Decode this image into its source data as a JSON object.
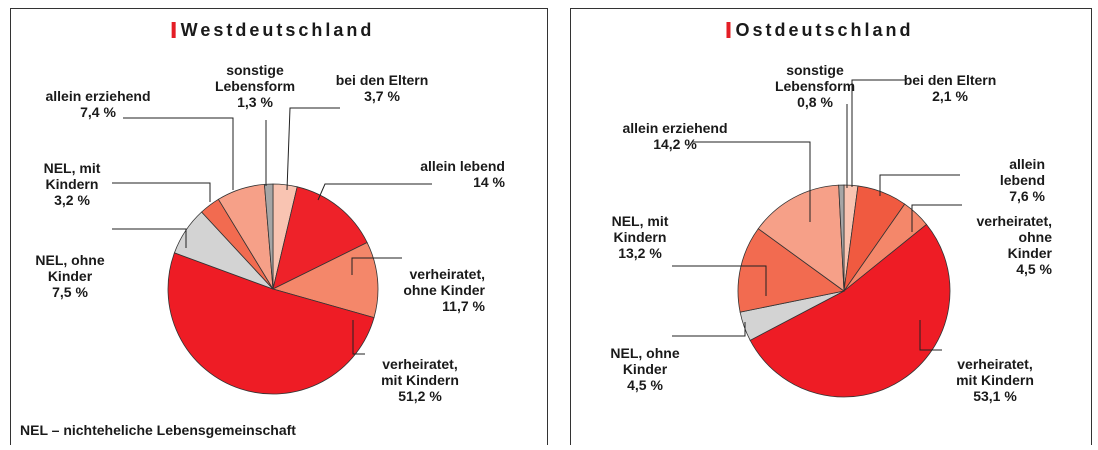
{
  "chart_data": [
    {
      "type": "pie",
      "title": "Westdeutschland",
      "categories": [
        "bei den Eltern",
        "allein lebend",
        "verheiratet,\nohne Kinder",
        "verheiratet,\nmit Kindern",
        "NEL, ohne\nKinder",
        "NEL, mit\nKindern",
        "allein erziehend",
        "sonstige\nLebensform"
      ],
      "values": [
        3.7,
        14,
        11.7,
        51.2,
        7.5,
        3.2,
        7.4,
        1.3
      ],
      "value_labels": [
        "3,7 %",
        "14 %",
        "11,7 %",
        "51,2 %",
        "7,5 %",
        "3,2 %",
        "7,4 %",
        "1,3 %"
      ],
      "colors": [
        "#f9c4b2",
        "#ee2229",
        "#f4876a",
        "#ee1c25",
        "#d3d3d3",
        "#f26b50",
        "#f6a088",
        "#a6a6a6"
      ],
      "note": "NEL – nichteheliche Lebensgemeinschaft"
    },
    {
      "type": "pie",
      "title": "Ostdeutschland",
      "categories": [
        "bei den Eltern",
        "allein lebend",
        "verheiratet,\nohne Kinder",
        "verheiratet,\nmit Kindern",
        "NEL, ohne\nKinder",
        "NEL, mit\nKindern",
        "allein erziehend",
        "sonstige\nLebensform"
      ],
      "values": [
        2.1,
        7.6,
        4.5,
        53.1,
        4.5,
        13.2,
        14.2,
        0.8
      ],
      "value_labels": [
        "2,1 %",
        "7,6 %",
        "4,5 %",
        "53,1 %",
        "4,5 %",
        "13,2 %",
        "14,2 %",
        "0,8 %"
      ],
      "colors": [
        "#f9c4b2",
        "#f05a40",
        "#f4876a",
        "#ee1c25",
        "#d3d3d3",
        "#f26b50",
        "#f6a088",
        "#a6a6a6"
      ]
    }
  ]
}
